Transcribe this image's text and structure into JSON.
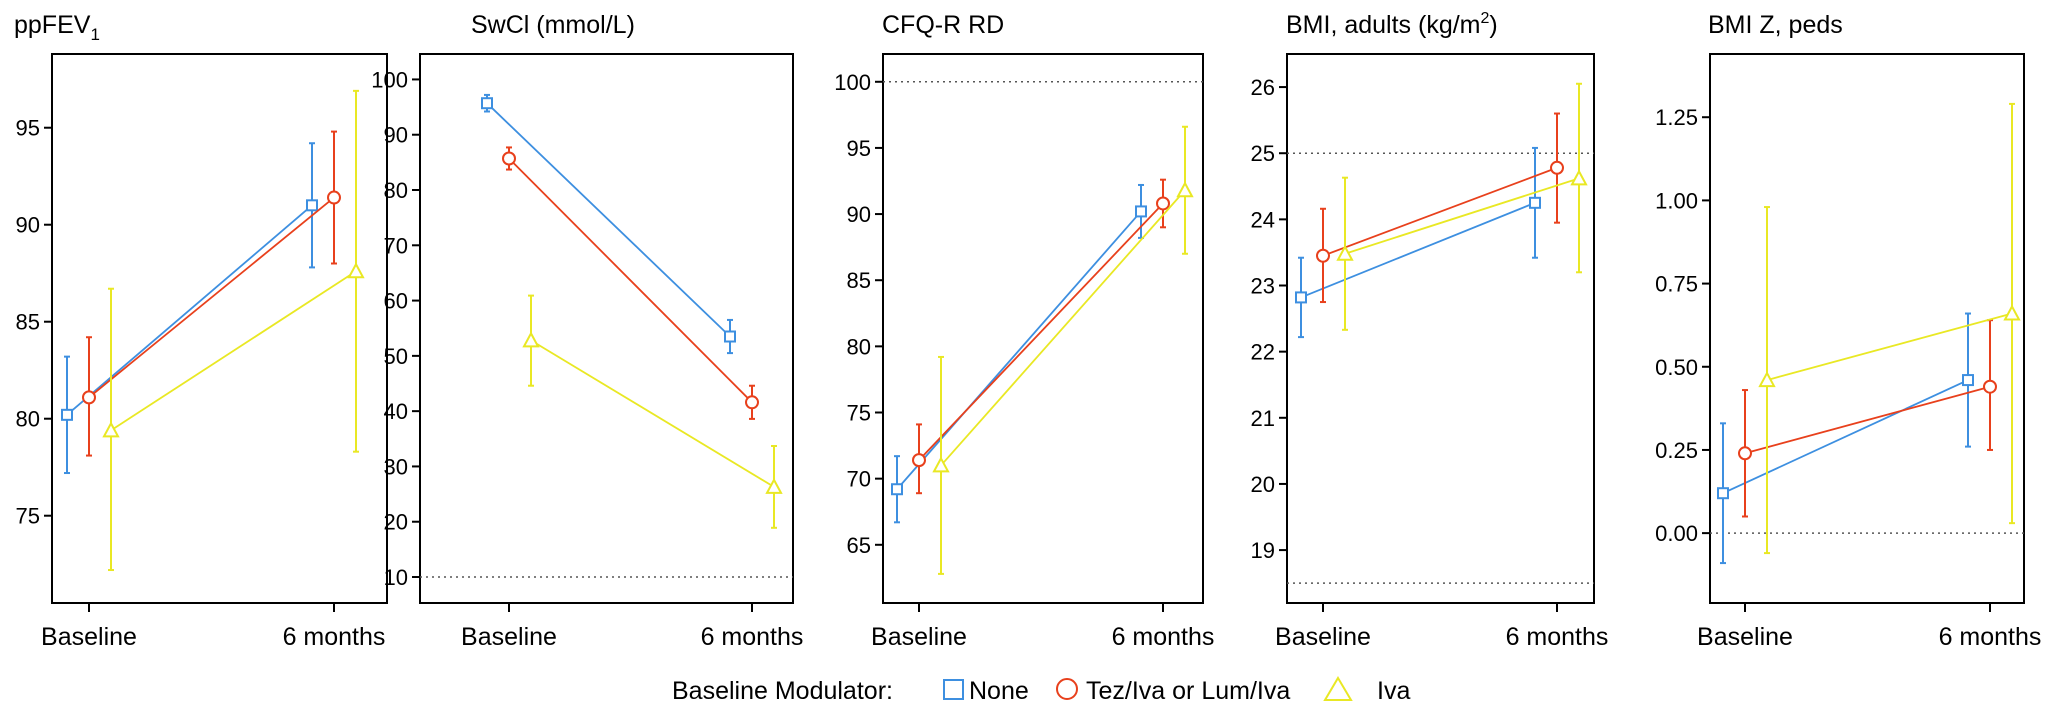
{
  "legend": {
    "title": "Baseline Modulator:",
    "groups": [
      {
        "label": "None",
        "color": "#3d8fe0",
        "marker": "square"
      },
      {
        "label": "Tez/Iva or Lum/Iva",
        "color": "#e8401c",
        "marker": "circle"
      },
      {
        "label": "Iva",
        "color": "#e9e824",
        "marker": "triangle"
      }
    ]
  },
  "chart_data": [
    {
      "type": "line",
      "title": "ppFEV1",
      "title_main": "ppFEV",
      "title_sub": "1",
      "categories": [
        "Baseline",
        "6 months"
      ],
      "yticks": [
        75,
        80,
        85,
        90,
        95
      ],
      "ylim": [
        70.5,
        98.8
      ],
      "reference_lines": [],
      "series": [
        {
          "name": "None",
          "values": [
            80.2,
            91.0
          ],
          "lower": [
            77.2,
            87.8
          ],
          "upper": [
            83.2,
            94.2
          ]
        },
        {
          "name": "Tez/Iva or Lum/Iva",
          "values": [
            81.1,
            91.4
          ],
          "lower": [
            78.1,
            88.0
          ],
          "upper": [
            84.2,
            94.8
          ]
        },
        {
          "name": "Iva",
          "values": [
            79.4,
            87.6
          ],
          "lower": [
            72.2,
            78.3
          ],
          "upper": [
            86.7,
            96.9
          ]
        }
      ]
    },
    {
      "type": "line",
      "title": "SwCl (mmol/L)",
      "categories": [
        "Baseline",
        "6 months"
      ],
      "yticks": [
        10,
        20,
        30,
        40,
        50,
        60,
        70,
        80,
        90,
        100
      ],
      "ylim": [
        5.3,
        104.6
      ],
      "reference_lines": [
        10
      ],
      "series": [
        {
          "name": "None",
          "values": [
            95.7,
            53.5
          ],
          "lower": [
            94.2,
            50.5
          ],
          "upper": [
            97.2,
            56.5
          ]
        },
        {
          "name": "Tez/Iva or Lum/Iva",
          "values": [
            85.7,
            41.6
          ],
          "lower": [
            83.7,
            38.6
          ],
          "upper": [
            87.7,
            44.6
          ]
        },
        {
          "name": "Iva",
          "values": [
            52.8,
            26.3
          ],
          "lower": [
            44.6,
            18.9
          ],
          "upper": [
            60.9,
            33.7
          ]
        }
      ]
    },
    {
      "type": "line",
      "title": "CFQ-R RD",
      "categories": [
        "Baseline",
        "6 months"
      ],
      "yticks": [
        65,
        70,
        75,
        80,
        85,
        90,
        95,
        100
      ],
      "ylim": [
        60.6,
        102.1
      ],
      "reference_lines": [
        100
      ],
      "series": [
        {
          "name": "None",
          "values": [
            69.2,
            90.2
          ],
          "lower": [
            66.7,
            88.2
          ],
          "upper": [
            71.7,
            92.2
          ]
        },
        {
          "name": "Tez/Iva or Lum/Iva",
          "values": [
            71.4,
            90.8
          ],
          "lower": [
            68.9,
            89.0
          ],
          "upper": [
            74.1,
            92.6
          ]
        },
        {
          "name": "Iva",
          "values": [
            71.0,
            91.8
          ],
          "lower": [
            62.8,
            87.0
          ],
          "upper": [
            79.2,
            96.6
          ]
        }
      ]
    },
    {
      "type": "line",
      "title": "BMI, adults (kg/m2)",
      "title_main": "BMI, adults (kg/m",
      "title_sup": "2",
      "title_end": ")",
      "categories": [
        "Baseline",
        "6 months"
      ],
      "yticks": [
        19,
        20,
        21,
        22,
        23,
        24,
        25,
        26
      ],
      "ylim": [
        18.2,
        26.5
      ],
      "reference_lines": [
        18.5,
        25
      ],
      "series": [
        {
          "name": "None",
          "values": [
            22.82,
            24.25
          ],
          "lower": [
            22.22,
            23.42
          ],
          "upper": [
            23.42,
            25.08
          ]
        },
        {
          "name": "Tez/Iva or Lum/Iva",
          "values": [
            23.45,
            24.78
          ],
          "lower": [
            22.75,
            23.95
          ],
          "upper": [
            24.16,
            25.6
          ]
        },
        {
          "name": "Iva",
          "values": [
            23.48,
            24.62
          ],
          "lower": [
            22.33,
            23.2
          ],
          "upper": [
            24.63,
            26.05
          ]
        }
      ]
    },
    {
      "type": "line",
      "title": "BMI Z, peds",
      "categories": [
        "Baseline",
        "6 months"
      ],
      "yticks": [
        0.0,
        0.25,
        0.5,
        0.75,
        1.0,
        1.25
      ],
      "ytick_labels": [
        "0.00",
        "0.25",
        "0.50",
        "0.75",
        "1.00",
        "1.25"
      ],
      "ylim": [
        -0.21,
        1.44
      ],
      "reference_lines": [
        0
      ],
      "series": [
        {
          "name": "None",
          "values": [
            0.12,
            0.46
          ],
          "lower": [
            -0.09,
            0.26
          ],
          "upper": [
            0.33,
            0.66
          ]
        },
        {
          "name": "Tez/Iva or Lum/Iva",
          "values": [
            0.24,
            0.44
          ],
          "lower": [
            0.05,
            0.25
          ],
          "upper": [
            0.43,
            0.64
          ]
        },
        {
          "name": "Iva",
          "values": [
            0.46,
            0.66
          ],
          "lower": [
            -0.06,
            0.03
          ],
          "upper": [
            0.98,
            1.29
          ]
        }
      ]
    }
  ]
}
